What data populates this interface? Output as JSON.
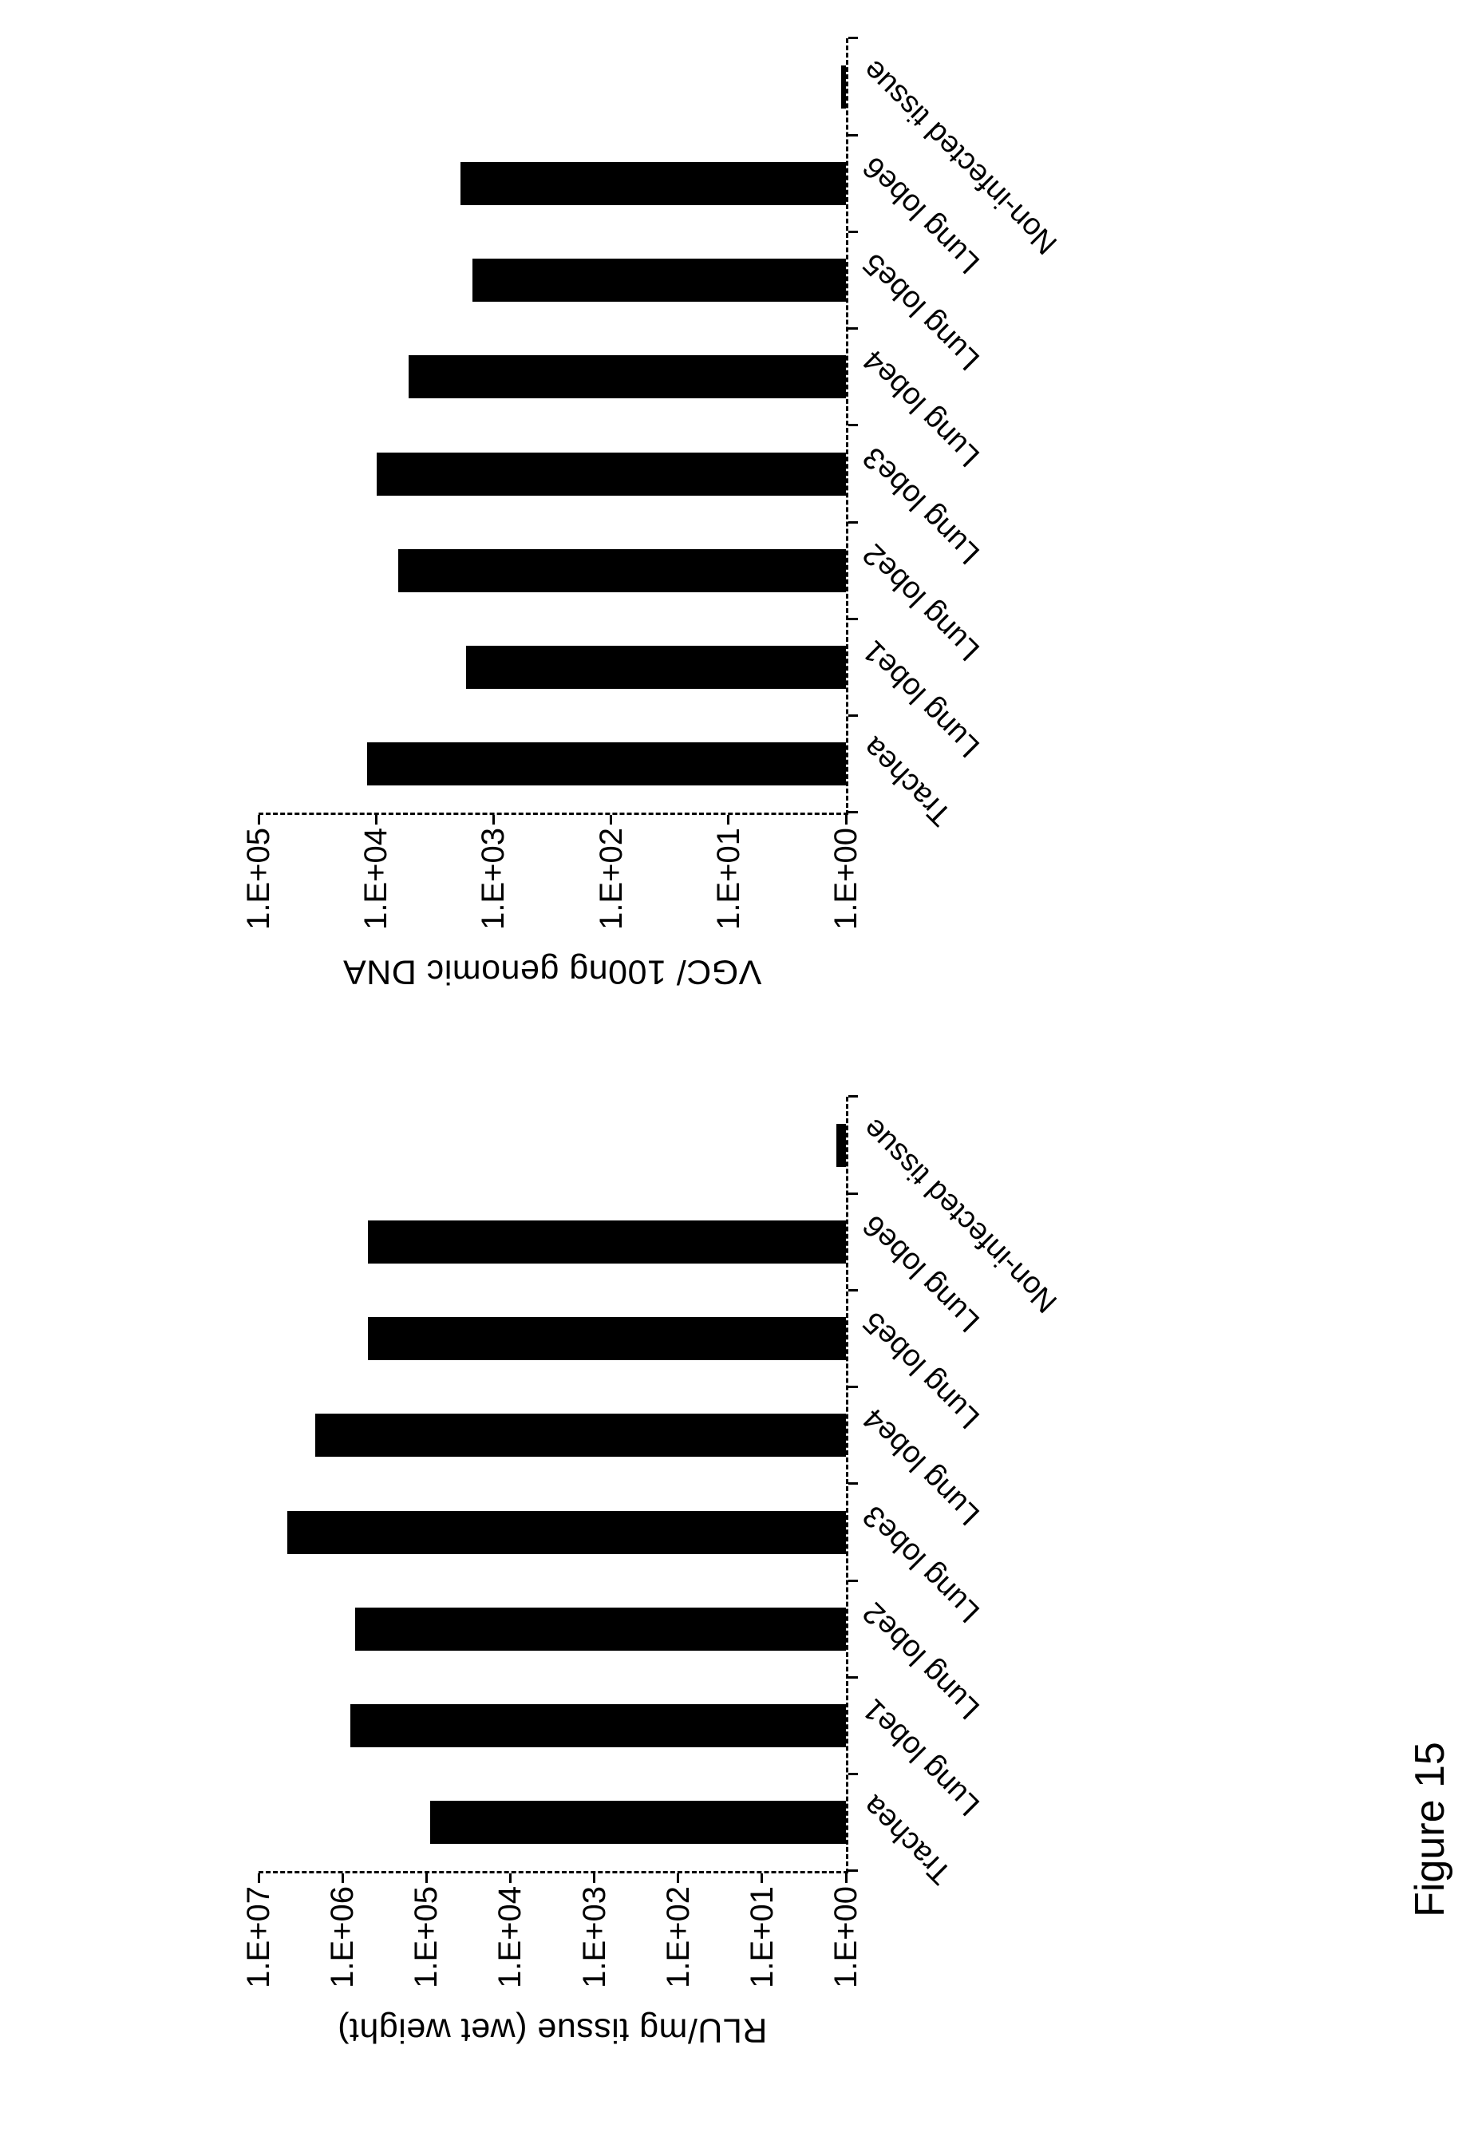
{
  "figure": {
    "caption": "Figure 15"
  },
  "colors": {
    "bar": "#000000",
    "axis": "#000000",
    "text": "#000000",
    "background": "#ffffff"
  },
  "chart_data": [
    {
      "id": "vgc",
      "type": "bar",
      "title": "",
      "ylabel": "VGC/ 100ng genomic DNA",
      "xlabel": "",
      "categories": [
        "Trachea",
        "Lung lobe1",
        "Lung lobe2",
        "Lung lobe3",
        "Lung lobe4",
        "Lung lobe5",
        "Lung lobe6",
        "Non-infected tissue"
      ],
      "values": [
        12000,
        1700,
        6500,
        9800,
        5300,
        1500,
        1900,
        1.1
      ],
      "log_scale": true,
      "ylim": [
        1,
        100000
      ],
      "yticks": [
        "1.E+00",
        "1.E+01",
        "1.E+02",
        "1.E+03",
        "1.E+04",
        "1.E+05"
      ],
      "grid": false,
      "legend": "none",
      "layout_note": "Printed rotated 90 deg counterclockwise: bars run left from a baseline on the right, value axis along the bottom, diagonal category labels on the right"
    },
    {
      "id": "rlu",
      "type": "bar",
      "title": "",
      "ylabel": "RLU/mg tissue (wet weight)",
      "xlabel": "",
      "categories": [
        "Trachea",
        "Lung lobe1",
        "Lung lobe2",
        "Lung lobe3",
        "Lung lobe4",
        "Lung lobe5",
        "Lung lobe6",
        "Non-infected tissue"
      ],
      "values": [
        90000,
        800000,
        700000,
        4500000,
        2100000,
        500000,
        500000,
        1.3
      ],
      "log_scale": true,
      "ylim": [
        1,
        10000000
      ],
      "yticks": [
        "1.E+00",
        "1.E+01",
        "1.E+02",
        "1.E+03",
        "1.E+04",
        "1.E+05",
        "1.E+06",
        "1.E+07"
      ],
      "grid": false,
      "legend": "none",
      "layout_note": "Same rotated layout as first chart"
    }
  ]
}
